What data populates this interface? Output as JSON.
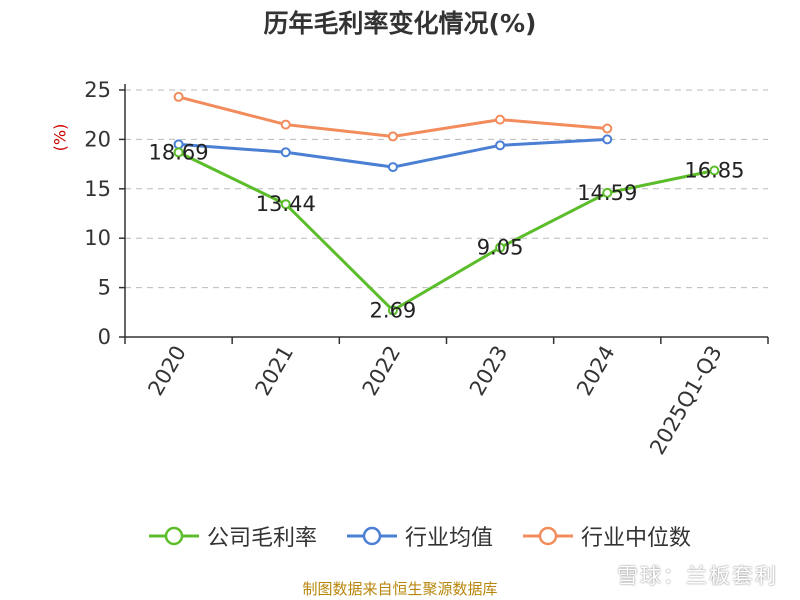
{
  "title": "历年毛利率变化情况(%)",
  "source_note": "制图数据来自恒生聚源数据库",
  "watermark": "雪球：兰板套利",
  "colors": {
    "company": "#5cbd2a",
    "industry_avg": "#4a7fd4",
    "industry_median": "#f28c5c",
    "ylabel": "#cc0000",
    "source": "#b8860b"
  },
  "legend": {
    "company": "公司毛利率",
    "industry_avg": "行业均值",
    "industry_median": "行业中位数"
  },
  "chart_data": {
    "type": "line",
    "title": "历年毛利率变化情况(%)",
    "ylabel": "(%)",
    "xlabel": "",
    "categories": [
      "2020",
      "2021",
      "2022",
      "2023",
      "2024",
      "2025Q1-Q3"
    ],
    "ylim": [
      0,
      25
    ],
    "yticks": [
      0,
      5,
      10,
      15,
      20,
      25
    ],
    "grid": true,
    "legend_position": "bottom",
    "series": [
      {
        "name": "公司毛利率",
        "key": "company",
        "values": [
          18.69,
          13.44,
          2.69,
          9.05,
          14.59,
          16.85
        ],
        "labels": [
          "18.69",
          "13.44",
          "2.69",
          "9.05",
          "14.59",
          "16.85"
        ]
      },
      {
        "name": "行业均值",
        "key": "industry_avg",
        "values": [
          19.5,
          18.7,
          17.2,
          19.4,
          20.0,
          null
        ]
      },
      {
        "name": "行业中位数",
        "key": "industry_median",
        "values": [
          24.3,
          21.5,
          20.3,
          22.0,
          21.1,
          null
        ]
      }
    ]
  }
}
